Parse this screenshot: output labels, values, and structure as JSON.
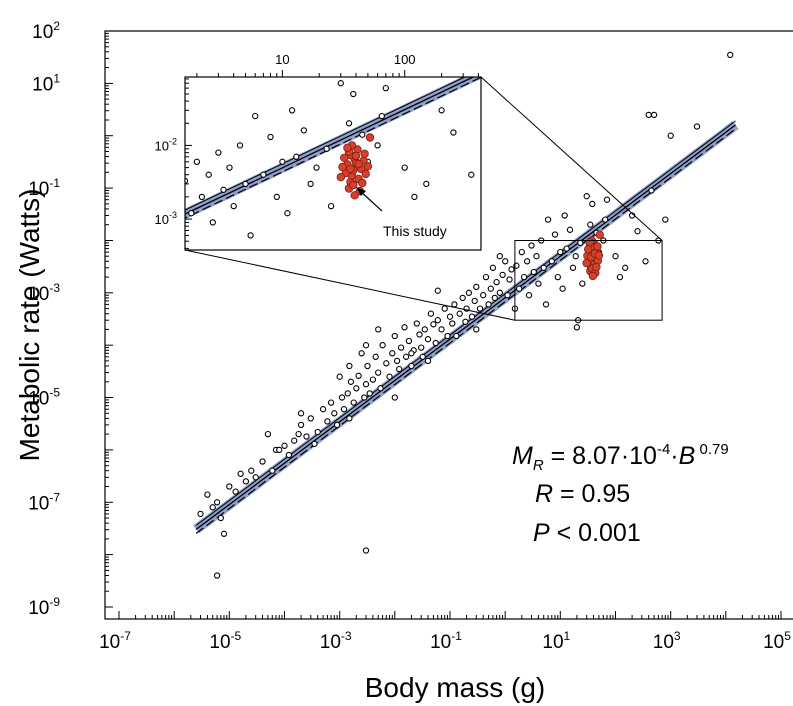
{
  "chart_data": {
    "type": "scatter",
    "xlabel": "Body mass (g)",
    "ylabel": "Metabolic rate (Watts)",
    "x_scale": "log",
    "y_scale": "log",
    "xlim": [
      1e-07,
      100000.0
    ],
    "ylim": [
      1e-09,
      100
    ],
    "x_ticks": [
      {
        "base": "10",
        "exp": "-7",
        "value": 1e-07
      },
      {
        "base": "10",
        "exp": "-5",
        "value": 1e-05
      },
      {
        "base": "10",
        "exp": "-3",
        "value": 0.001
      },
      {
        "base": "10",
        "exp": "-1",
        "value": 0.1
      },
      {
        "base": "10",
        "exp": "1",
        "value": 10
      },
      {
        "base": "10",
        "exp": "3",
        "value": 1000
      },
      {
        "base": "10",
        "exp": "5",
        "value": 100000
      }
    ],
    "y_ticks": [
      {
        "base": "10",
        "exp": "-9",
        "value": 1e-09
      },
      {
        "base": "10",
        "exp": "-7",
        "value": 1e-07
      },
      {
        "base": "10",
        "exp": "-5",
        "value": 1e-05
      },
      {
        "base": "10",
        "exp": "-3",
        "value": 0.001
      },
      {
        "base": "10",
        "exp": "-1",
        "value": 0.1
      },
      {
        "base": "10",
        "exp": "1",
        "value": 10
      },
      {
        "base": "10",
        "exp": "2",
        "value": 100
      }
    ],
    "fit": {
      "a": 0.000807,
      "b": 0.79,
      "x_range": [
        2.5e-06,
        15000
      ],
      "band_color": "#8e9fcb"
    },
    "equation": {
      "lhs": "M",
      "lhs_sub": "R",
      "rhs_main": " = 8.07·10",
      "rhs_exp1": "-4",
      "rhs_mid": "·",
      "var": "B",
      "rhs_exp2": " 0.79"
    },
    "stats": [
      {
        "sym": "R",
        "rest": " = 0.95"
      },
      {
        "sym": "P",
        "rest": " < 0.001"
      }
    ],
    "zoom_region": {
      "xlim": [
        1.5,
        700
      ],
      "ylim": [
        0.0003,
        0.01
      ]
    },
    "inset": {
      "xlim": [
        1.6,
        420
      ],
      "ylim": [
        0.00038,
        0.085
      ],
      "x_ticks": [
        {
          "label": "10",
          "value": 10
        },
        {
          "label": "100",
          "value": 100
        }
      ],
      "y_ticks": [
        {
          "base": "10",
          "exp": "-2",
          "value": 0.01
        },
        {
          "base": "10",
          "exp": "-3",
          "value": 0.001
        }
      ]
    },
    "annotation": {
      "text": "This study",
      "target": [
        40,
        0.0055
      ]
    },
    "highlight_color": "#d9402b",
    "series": [
      {
        "marker": "open-circle",
        "points": [
          [
            3e-06,
            6e-08
          ],
          [
            4e-06,
            1.4e-07
          ],
          [
            5e-06,
            8e-08
          ],
          [
            6e-06,
            1e-07
          ],
          [
            7e-06,
            5e-08
          ],
          [
            8e-06,
            2.5e-08
          ],
          [
            6e-06,
            4e-09
          ],
          [
            1e-05,
            2e-07
          ],
          [
            1.3e-05,
            1.6e-07
          ],
          [
            1.6e-05,
            3.5e-07
          ],
          [
            2e-05,
            2.5e-07
          ],
          [
            2.5e-05,
            4e-07
          ],
          [
            3e-05,
            3e-07
          ],
          [
            4e-05,
            6e-07
          ],
          [
            5e-05,
            2e-06
          ],
          [
            6e-05,
            4e-07
          ],
          [
            7e-05,
            1e-06
          ],
          [
            8e-05,
            1e-06
          ],
          [
            0.0001,
            1.2e-06
          ],
          [
            0.00012,
            8e-07
          ],
          [
            0.00015,
            1.5e-06
          ],
          [
            0.00018,
            2e-06
          ],
          [
            0.0002,
            3e-06
          ],
          [
            0.00025,
            1.8e-06
          ],
          [
            0.0003,
            4e-06
          ],
          [
            0.00035,
            1.3e-06
          ],
          [
            0.0004,
            2.2e-06
          ],
          [
            0.0005,
            6e-06
          ],
          [
            0.0006,
            3.5e-06
          ],
          [
            0.0007,
            8e-06
          ],
          [
            0.0008,
            5e-06
          ],
          [
            0.0009,
            3e-06
          ],
          [
            0.001,
            2.5e-05
          ],
          [
            0.0011,
            1e-05
          ],
          [
            0.0012,
            6e-06
          ],
          [
            0.0014,
            1.2e-05
          ],
          [
            0.0015,
            4e-05
          ],
          [
            0.0016,
            2e-05
          ],
          [
            0.0018,
            8e-06
          ],
          [
            0.002,
            1.5e-05
          ],
          [
            0.0022,
            2.6e-05
          ],
          [
            0.0025,
            7e-05
          ],
          [
            0.0028,
            1e-05
          ],
          [
            0.003,
            1.8e-05
          ],
          [
            0.003,
            1.2e-08
          ],
          [
            0.0032,
            4e-05
          ],
          [
            0.0035,
            1.2e-05
          ],
          [
            0.004,
            2.2e-05
          ],
          [
            0.0045,
            6e-05
          ],
          [
            0.005,
            3e-05
          ],
          [
            0.0055,
            1.5e-05
          ],
          [
            0.006,
            0.0001
          ],
          [
            0.007,
            4.5e-05
          ],
          [
            0.008,
            2.5e-05
          ],
          [
            0.009,
            7e-05
          ],
          [
            0.01,
            0.00015
          ],
          [
            0.011,
            5e-05
          ],
          [
            0.012,
            3.5e-05
          ],
          [
            0.013,
            9e-05
          ],
          [
            0.015,
            0.00022
          ],
          [
            0.016,
            6e-05
          ],
          [
            0.018,
            0.00012
          ],
          [
            0.02,
            4e-05
          ],
          [
            0.022,
            8e-05
          ],
          [
            0.025,
            0.00026
          ],
          [
            0.028,
            0.00016
          ],
          [
            0.03,
            9e-05
          ],
          [
            0.032,
            6e-05
          ],
          [
            0.035,
            0.0002
          ],
          [
            0.04,
            0.00013
          ],
          [
            0.045,
            0.0004
          ],
          [
            0.05,
            0.00025
          ],
          [
            0.055,
            0.00011
          ],
          [
            0.06,
            0.0003
          ],
          [
            0.07,
            0.0002
          ],
          [
            0.08,
            0.0005
          ],
          [
            0.09,
            0.00015
          ],
          [
            0.1,
            0.00035
          ],
          [
            0.11,
            0.00026
          ],
          [
            0.12,
            0.0006
          ],
          [
            0.13,
            0.00015
          ],
          [
            0.15,
            0.0004
          ],
          [
            0.17,
            0.0008
          ],
          [
            0.19,
            0.00028
          ],
          [
            0.2,
            0.0005
          ],
          [
            0.22,
            0.001
          ],
          [
            0.25,
            0.00035
          ],
          [
            0.28,
            0.0007
          ],
          [
            0.3,
            0.0013
          ],
          [
            0.35,
            0.0005
          ],
          [
            0.4,
            0.0009
          ],
          [
            0.45,
            0.002
          ],
          [
            0.5,
            0.0006
          ],
          [
            0.55,
            0.0012
          ],
          [
            0.6,
            0.003
          ],
          [
            0.65,
            0.0008
          ],
          [
            0.7,
            0.0016
          ],
          [
            0.8,
            0.001
          ],
          [
            0.9,
            0.0022
          ],
          [
            1,
            0.004
          ],
          [
            1.1,
            0.0009
          ],
          [
            1.2,
            0.0018
          ],
          [
            1.3,
            0.0028
          ],
          [
            1.5,
            0.0005
          ],
          [
            1.6,
            0.0033
          ],
          [
            1.8,
            0.0012
          ],
          [
            2,
            0.006
          ],
          [
            2.2,
            0.002
          ],
          [
            2.5,
            0.004
          ],
          [
            2.7,
            0.0009
          ],
          [
            3,
            0.008
          ],
          [
            3.3,
            0.0025
          ],
          [
            3.7,
            0.005
          ],
          [
            4,
            0.0015
          ],
          [
            4.5,
            0.01
          ],
          [
            5,
            0.003
          ],
          [
            5.5,
            0.0006
          ],
          [
            6,
            0.025
          ],
          [
            7,
            0.004
          ],
          [
            8,
            0.013
          ],
          [
            9,
            0.002
          ],
          [
            10,
            0.006
          ],
          [
            11,
            0.0012
          ],
          [
            12,
            0.03
          ],
          [
            13,
            0.007
          ],
          [
            15,
            0.016
          ],
          [
            17,
            0.003
          ],
          [
            19,
            0.005
          ],
          [
            20,
            0.00022
          ],
          [
            21,
            0.0003
          ],
          [
            23,
            0.009
          ],
          [
            25,
            0.0015
          ],
          [
            30,
            0.07
          ],
          [
            35,
            0.02
          ],
          [
            38,
            0.05
          ],
          [
            45,
            0.014
          ],
          [
            50,
            0.006
          ],
          [
            60,
            0.01
          ],
          [
            65,
            0.025
          ],
          [
            70,
            0.06
          ],
          [
            100,
            0.005
          ],
          [
            120,
            0.002
          ],
          [
            150,
            0.003
          ],
          [
            200,
            0.03
          ],
          [
            250,
            0.015
          ],
          [
            350,
            0.004
          ],
          [
            400,
            2.5
          ],
          [
            450,
            0.09
          ],
          [
            500,
            2.5
          ],
          [
            600,
            0.01
          ],
          [
            800,
            0.025
          ],
          [
            1000,
            1
          ],
          [
            3000,
            1.5
          ],
          [
            12000,
            35
          ],
          [
            0.005,
            0.0002
          ],
          [
            0.02,
            7e-05
          ],
          [
            0.01,
            1e-05
          ],
          [
            0.003,
            0.0001
          ],
          [
            0.8,
            0.005
          ],
          [
            0.06,
            0.0011
          ],
          [
            0.0015,
            4e-06
          ],
          [
            0.0002,
            5e-06
          ],
          [
            0.04,
            5e-05
          ],
          [
            0.3,
            0.0002
          ]
        ]
      },
      {
        "marker": "filled-circle",
        "name": "",
        "points": [
          [
            35,
            0.0026
          ],
          [
            36,
            0.0032
          ],
          [
            37,
            0.0039
          ],
          [
            38,
            0.0046
          ],
          [
            34,
            0.0055
          ],
          [
            39,
            0.0065
          ],
          [
            36,
            0.0074
          ],
          [
            41,
            0.0088
          ],
          [
            37,
            0.01
          ],
          [
            40,
            0.0058
          ],
          [
            33,
            0.0042
          ],
          [
            42,
            0.0035
          ],
          [
            35,
            0.0082
          ],
          [
            44,
            0.0048
          ],
          [
            38,
            0.0029
          ],
          [
            31,
            0.0051
          ],
          [
            46,
            0.0062
          ],
          [
            40,
            0.0072
          ],
          [
            43,
            0.0024
          ],
          [
            32,
            0.0068
          ],
          [
            48,
            0.0041
          ],
          [
            45,
            0.0031
          ],
          [
            30,
            0.0037
          ],
          [
            36,
            0.0048
          ],
          [
            42,
            0.0056
          ],
          [
            50,
            0.0052
          ],
          [
            39,
            0.0021
          ],
          [
            52,
            0.0128
          ],
          [
            34,
            0.0093
          ],
          [
            47,
            0.0077
          ]
        ]
      }
    ]
  }
}
